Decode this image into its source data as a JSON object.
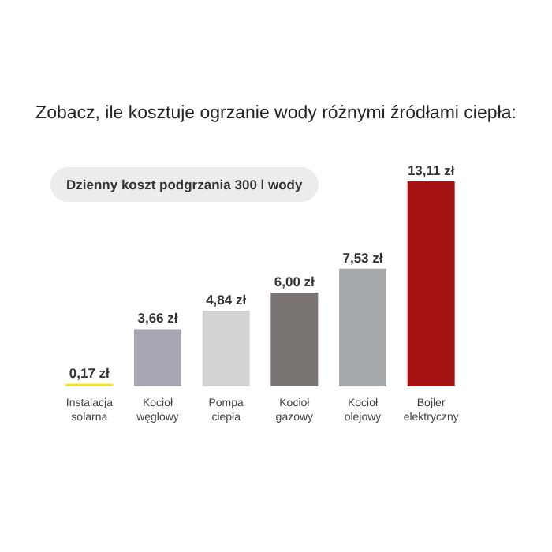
{
  "chart_data": {
    "type": "bar",
    "title": "Zobacz, ile kosztuje ogrzanie wody różnymi źródłami ciepła:",
    "subtitle": "Dzienny koszt podgrzania 300 l wody",
    "categories": [
      "Instalacja solarna",
      "Kocioł węglowy",
      "Pompa ciepła",
      "Kocioł gazowy",
      "Kocioł olejowy",
      "Bojler elektryczny"
    ],
    "values": [
      0.17,
      3.66,
      4.84,
      6.0,
      7.53,
      13.11
    ],
    "colors": [
      "#f2e02c",
      "#a6a7b3",
      "#d3d3d5",
      "#7a7472",
      "#a7aaad",
      "#a51212"
    ],
    "value_labels": [
      "0,17 zł",
      "3,66 zł",
      "4,84 zł",
      "6,00 zł",
      "7,53 zł",
      "13,11 zł"
    ]
  }
}
